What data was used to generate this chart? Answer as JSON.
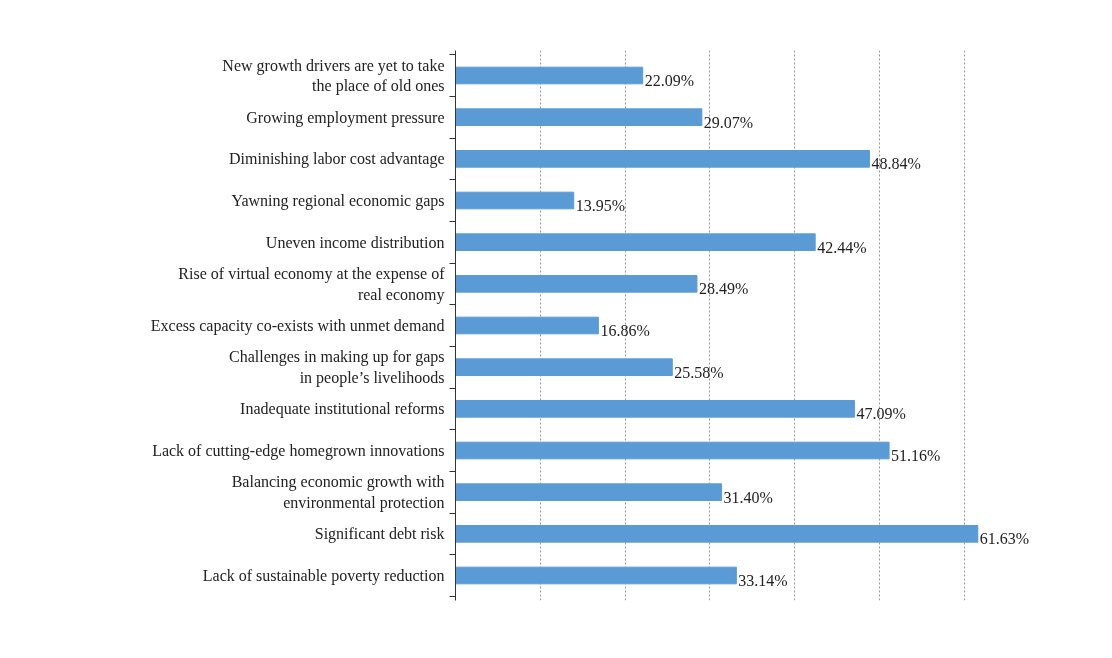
{
  "chart_data": {
    "type": "bar",
    "orientation": "horizontal",
    "categories": [
      "New growth drivers are yet to take\nthe place of old ones",
      "Growing employment pressure",
      "Diminishing labor cost advantage",
      "Yawning regional economic gaps",
      "Uneven income distribution",
      "Rise of virtual economy at the expense of\nreal economy",
      "Excess capacity co-exists with unmet demand",
      "Challenges in making up for gaps\nin people’s livelihoods",
      "Inadequate institutional reforms",
      "Lack of cutting-edge homegrown innovations",
      "Balancing economic growth with\nenvironmental protection",
      "Significant debt risk",
      "Lack of sustainable poverty reduction"
    ],
    "values": [
      22.09,
      29.07,
      48.84,
      13.95,
      42.44,
      28.49,
      16.86,
      25.58,
      47.09,
      51.16,
      31.4,
      61.63,
      33.14
    ],
    "value_labels": [
      "22.09%",
      "29.07%",
      "48.84%",
      "13.95%",
      "42.44%",
      "28.49%",
      "16.86%",
      "25.58%",
      "47.09%",
      "51.16%",
      "31.40%",
      "61.63%",
      "33.14%"
    ],
    "color": "#5b9bd5",
    "grid": "x",
    "tick_labels": "y"
  }
}
